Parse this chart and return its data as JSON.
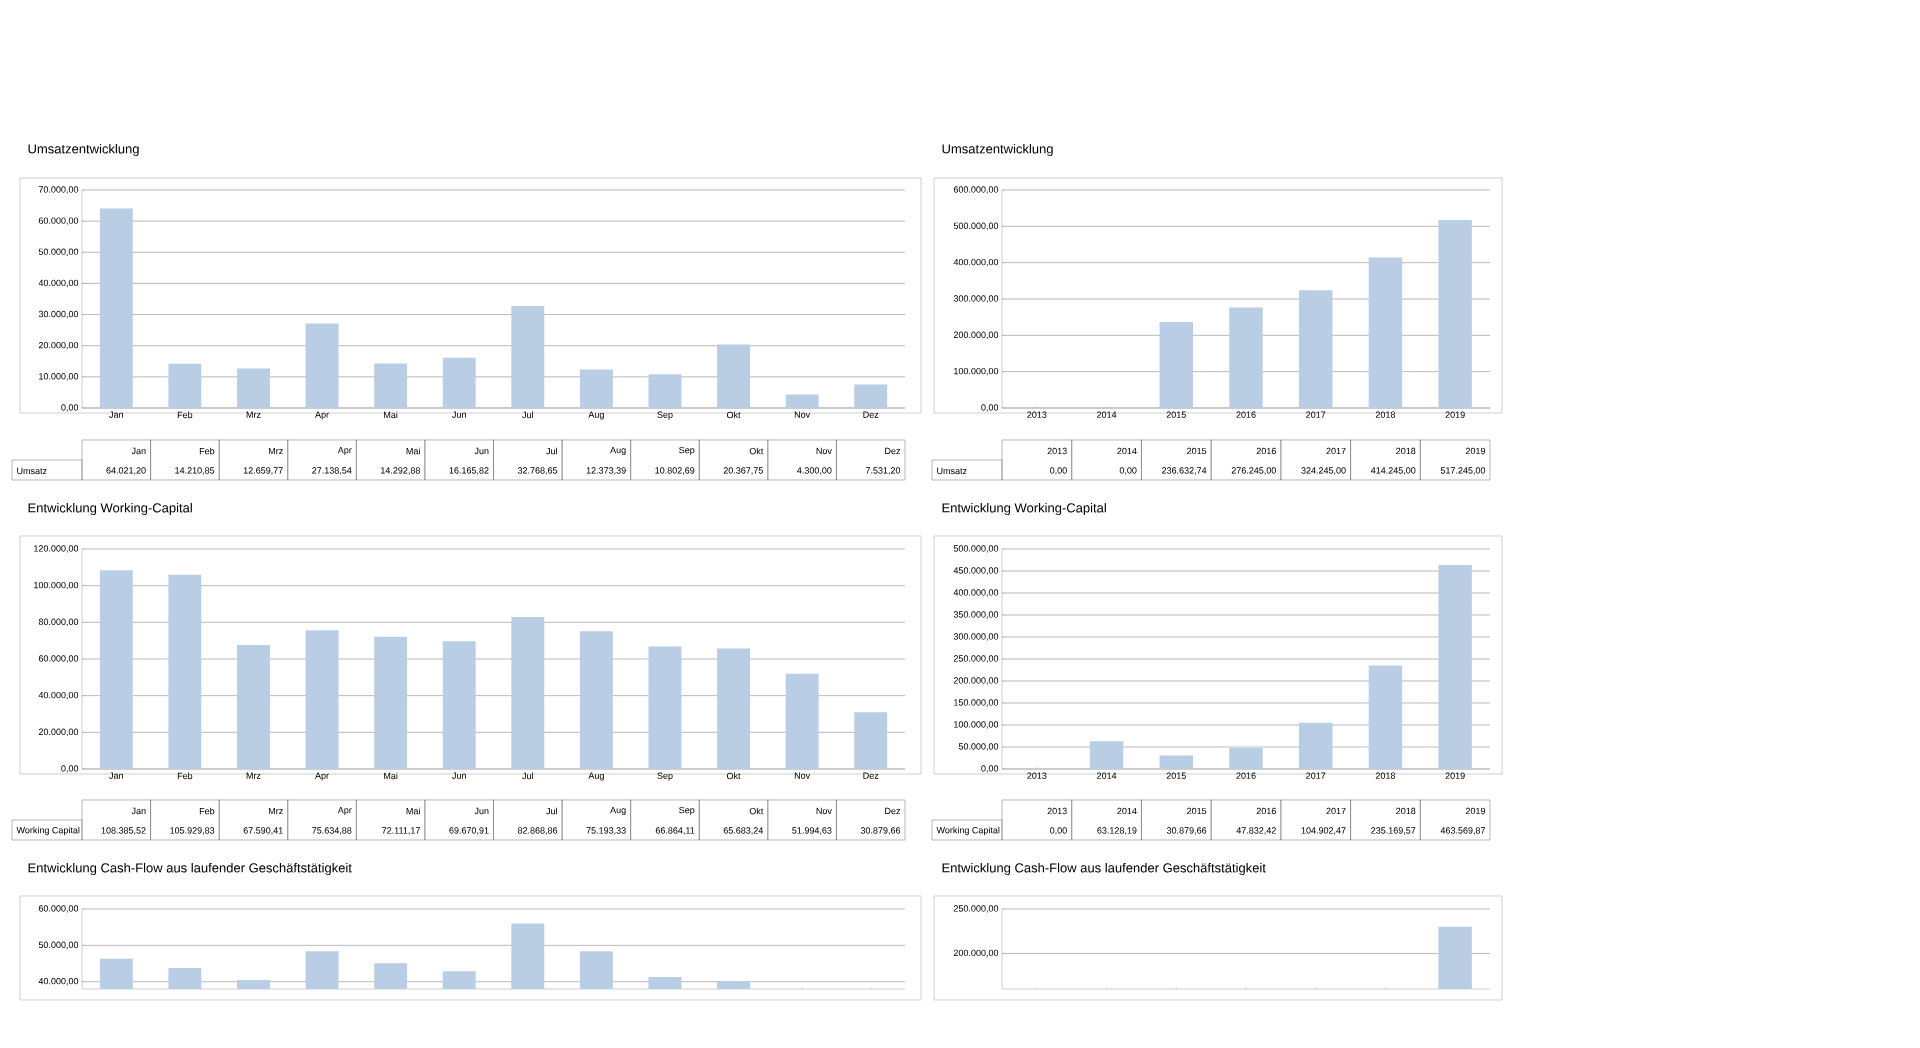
{
  "chart_data": [
    {
      "type": "bar",
      "title": "Umsatzentwicklung",
      "categories": [
        "Jan",
        "Feb",
        "Mrz",
        "Apr",
        "Mai",
        "Jun",
        "Jul",
        "Aug",
        "Sep",
        "Okt",
        "Nov",
        "Dez"
      ],
      "series": [
        {
          "name": "Umsatz",
          "color": "#b9cde5",
          "values": [
            64021.2,
            14210.85,
            12659.77,
            27138.54,
            14292.88,
            16165.82,
            32768.65,
            12373.39,
            10802.69,
            20367.75,
            4300.0,
            7531.2
          ],
          "value_labels": [
            "64.021,20",
            "14.210,85",
            "12.659,77",
            "27.138,54",
            "14.292,88",
            "16.165,82",
            "32.768,65",
            "12.373,39",
            "10.802,69",
            "20.367,75",
            "4.300,00",
            "7.531,20"
          ]
        }
      ],
      "ylim": [
        0,
        70000
      ],
      "yticks": [
        {
          "value": 0,
          "label": "0,00"
        },
        {
          "value": 10000,
          "label": "10.000,00"
        },
        {
          "value": 20000,
          "label": "20.000,00"
        },
        {
          "value": 30000,
          "label": "30.000,00"
        },
        {
          "value": 40000,
          "label": "40.000,00"
        },
        {
          "value": 50000,
          "label": "50.000,00"
        },
        {
          "value": 60000,
          "label": "60.000,00"
        },
        {
          "value": 70000,
          "label": "70.000,00"
        }
      ],
      "grid": "y"
    },
    {
      "type": "bar",
      "title": "Umsatzentwicklung",
      "categories": [
        "2013",
        "2014",
        "2015",
        "2016",
        "2017",
        "2018",
        "2019"
      ],
      "series": [
        {
          "name": "Umsatz",
          "color": "#b9cde5",
          "values": [
            0.0,
            0.0,
            236632.74,
            276245.0,
            324245.0,
            414245.0,
            517245.0
          ],
          "value_labels": [
            "0,00",
            "0,00",
            "236.632,74",
            "276.245,00",
            "324.245,00",
            "414.245,00",
            "517.245,00"
          ]
        }
      ],
      "ylim": [
        0,
        600000
      ],
      "yticks": [
        {
          "value": 0,
          "label": "0,00"
        },
        {
          "value": 100000,
          "label": "100.000,00"
        },
        {
          "value": 200000,
          "label": "200.000,00"
        },
        {
          "value": 300000,
          "label": "300.000,00"
        },
        {
          "value": 400000,
          "label": "400.000,00"
        },
        {
          "value": 500000,
          "label": "500.000,00"
        },
        {
          "value": 600000,
          "label": "600.000,00"
        }
      ],
      "grid": "y"
    },
    {
      "type": "bar",
      "title": "Entwicklung Working-Capital",
      "categories": [
        "Jan",
        "Feb",
        "Mrz",
        "Apr",
        "Mai",
        "Jun",
        "Jul",
        "Aug",
        "Sep",
        "Okt",
        "Nov",
        "Dez"
      ],
      "series": [
        {
          "name": "Working Capital",
          "color": "#b9cde5",
          "values": [
            108385.52,
            105929.83,
            67590.41,
            75634.88,
            72111.17,
            69670.91,
            82868.86,
            75193.33,
            66864.11,
            65683.24,
            51994.63,
            30879.66
          ],
          "value_labels": [
            "108.385,52",
            "105.929,83",
            "67.590,41",
            "75.634,88",
            "72.111,17",
            "69.670,91",
            "82.868,86",
            "75.193,33",
            "66.864,11",
            "65.683,24",
            "51.994,63",
            "30.879,66"
          ]
        }
      ],
      "ylim": [
        0,
        120000
      ],
      "yticks": [
        {
          "value": 0,
          "label": "0,00"
        },
        {
          "value": 20000,
          "label": "20.000,00"
        },
        {
          "value": 40000,
          "label": "40.000,00"
        },
        {
          "value": 60000,
          "label": "60.000,00"
        },
        {
          "value": 80000,
          "label": "80.000,00"
        },
        {
          "value": 100000,
          "label": "100.000,00"
        },
        {
          "value": 120000,
          "label": "120.000,00"
        }
      ],
      "grid": "y"
    },
    {
      "type": "bar",
      "title": "Entwicklung Working-Capital",
      "categories": [
        "2013",
        "2014",
        "2015",
        "2016",
        "2017",
        "2018",
        "2019"
      ],
      "series": [
        {
          "name": "Working Capital",
          "color": "#b9cde5",
          "values": [
            0.0,
            63128.19,
            30879.66,
            47832.42,
            104902.47,
            235169.57,
            463569.87
          ],
          "value_labels": [
            "0,00",
            "63.128,19",
            "30.879,66",
            "47.832,42",
            "104.902,47",
            "235.169,57",
            "463.569,87"
          ]
        }
      ],
      "ylim": [
        0,
        500000
      ],
      "yticks": [
        {
          "value": 0,
          "label": "0,00"
        },
        {
          "value": 50000,
          "label": "50.000,00"
        },
        {
          "value": 100000,
          "label": "100.000,00"
        },
        {
          "value": 150000,
          "label": "150.000,00"
        },
        {
          "value": 200000,
          "label": "200.000,00"
        },
        {
          "value": 250000,
          "label": "250.000,00"
        },
        {
          "value": 300000,
          "label": "300.000,00"
        },
        {
          "value": 350000,
          "label": "350.000,00"
        },
        {
          "value": 400000,
          "label": "400.000,00"
        },
        {
          "value": 450000,
          "label": "450.000,00"
        },
        {
          "value": 500000,
          "label": "500.000,00"
        }
      ],
      "grid": "y"
    },
    {
      "type": "bar",
      "title": "Entwicklung Cash-Flow aus laufender Geschäftstätigkeit",
      "categories": [
        null,
        null,
        null,
        null,
        null,
        null,
        null,
        null,
        null,
        null,
        null,
        null
      ],
      "series": [
        {
          "color": "#b9cde5",
          "values": [
            46300,
            43800,
            40500,
            48400,
            45100,
            42900,
            56000,
            48400,
            41300,
            40200,
            null,
            null
          ]
        }
      ],
      "ylim": [
        38000,
        60000
      ],
      "yticks": [
        {
          "value": 40000,
          "label": "40.000,00"
        },
        {
          "value": 50000,
          "label": "50.000,00"
        },
        {
          "value": 60000,
          "label": "60.000,00"
        }
      ],
      "grid": "y",
      "tick_labels": "y"
    },
    {
      "type": "bar",
      "title": "Entwicklung Cash-Flow aus laufender Geschäftstätigkeit",
      "categories": [
        null,
        null,
        null,
        null,
        null,
        null,
        null
      ],
      "series": [
        {
          "color": "#b9cde5",
          "values": [
            null,
            null,
            null,
            null,
            null,
            null,
            230000
          ]
        }
      ],
      "ylim": [
        160000,
        250000
      ],
      "yticks": [
        {
          "value": 200000,
          "label": "200.000,00"
        },
        {
          "value": 250000,
          "label": "250.000,00"
        }
      ],
      "grid": "y",
      "tick_labels": "y"
    }
  ]
}
